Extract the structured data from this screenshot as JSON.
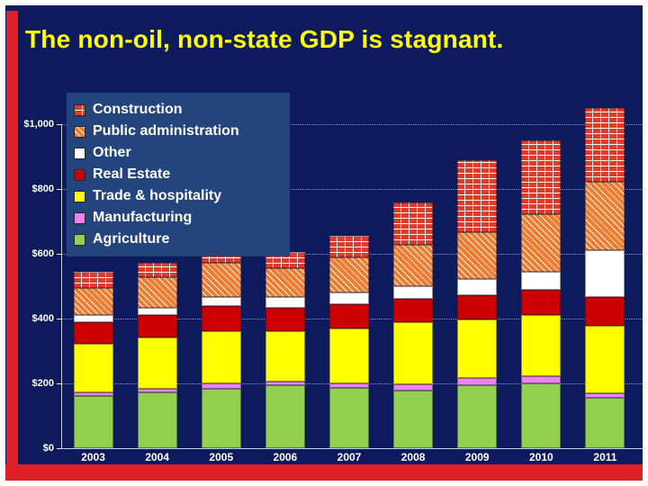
{
  "slide": {
    "title": "The non-oil, non-state GDP is stagnant.",
    "colors": {
      "background": "#0D1A5C",
      "accent": "#DF1E26",
      "title_text": "#FFFF00",
      "legend_background": "#24447E",
      "axis_text": "#FFFFFF",
      "gridline": "#BECDEB"
    }
  },
  "chart_data": {
    "type": "bar",
    "stacked": true,
    "title": "",
    "xlabel": "",
    "ylabel": "",
    "categories": [
      "2003",
      "2004",
      "2005",
      "2006",
      "2007",
      "2008",
      "2009",
      "2010",
      "2011"
    ],
    "series": [
      {
        "name": "Agriculture",
        "color": "#92D050",
        "pattern": "solid",
        "values": [
          161,
          172,
          183,
          194,
          186,
          178,
          194,
          200,
          156
        ]
      },
      {
        "name": "Manufacturing",
        "color": "#EE82EE",
        "pattern": "solid",
        "values": [
          11,
          11,
          17,
          11,
          14,
          19,
          22,
          22,
          14
        ]
      },
      {
        "name": "Trade & hospitality",
        "color": "#FFFF00",
        "pattern": "solid",
        "values": [
          150,
          159,
          161,
          156,
          169,
          192,
          181,
          189,
          208
        ]
      },
      {
        "name": "Real Estate",
        "color": "#CC0000",
        "pattern": "solid",
        "values": [
          67,
          69,
          78,
          72,
          75,
          72,
          75,
          78,
          89
        ]
      },
      {
        "name": "Other",
        "color": "#FFFFFF",
        "pattern": "solid",
        "values": [
          22,
          22,
          28,
          33,
          36,
          39,
          50,
          56,
          144
        ]
      },
      {
        "name": "Public administration",
        "color": "#ED7D31",
        "pattern": "diagonal",
        "values": [
          83,
          95,
          105,
          89,
          108,
          128,
          144,
          178,
          211
        ]
      },
      {
        "name": "Construction",
        "color": "#E03A2A",
        "pattern": "brick",
        "values": [
          50,
          44,
          39,
          50,
          67,
          131,
          222,
          228,
          228
        ]
      }
    ],
    "totals": [
      544,
      572,
      611,
      605,
      655,
      759,
      888,
      951,
      1050
    ],
    "yticks": [
      {
        "value": 0,
        "label": "$0"
      },
      {
        "value": 200,
        "label": "$200"
      },
      {
        "value": 400,
        "label": "$400"
      },
      {
        "value": 600,
        "label": "$600"
      },
      {
        "value": 800,
        "label": "$800"
      },
      {
        "value": 1000,
        "label": "$1,000"
      }
    ],
    "ylim": [
      0,
      1100
    ],
    "grid": "dotted-horizontal",
    "legend_position": "top-left-overlay",
    "legend_order_top_to_bottom": [
      "Construction",
      "Public administration",
      "Other",
      "Real Estate",
      "Trade & hospitality",
      "Manufacturing",
      "Agriculture"
    ]
  }
}
